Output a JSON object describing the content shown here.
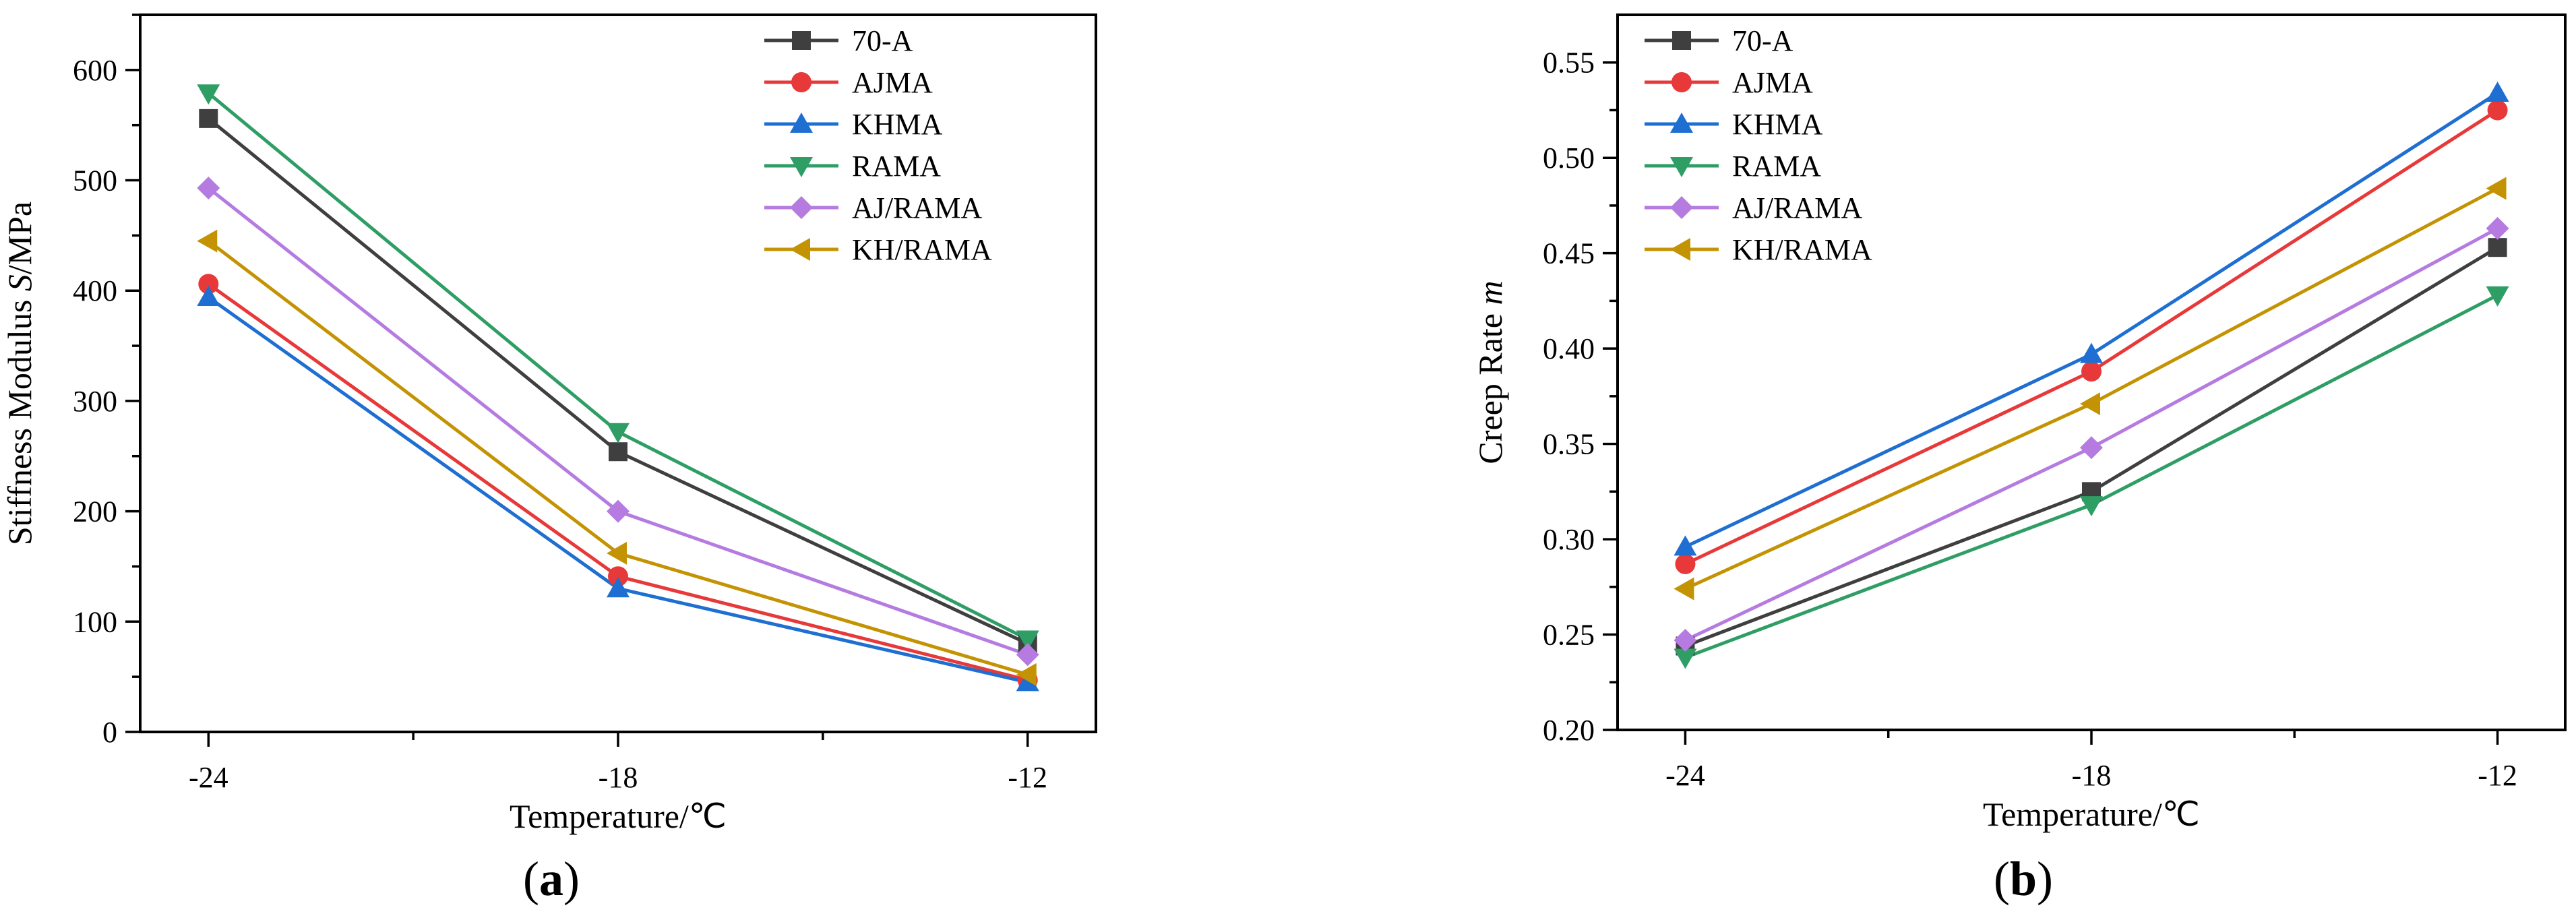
{
  "chart_data": [
    {
      "type": "line",
      "panel_label_open": "(",
      "panel_label_letter": "a",
      "panel_label_close": ")",
      "xlabel": "Temperature/℃",
      "ylabel_prefix": "Stiffness Modulus ",
      "ylabel_italic": "S",
      "ylabel_suffix": "/MPa",
      "x": [
        -24,
        -18,
        -12
      ],
      "x_tick_labels": [
        "-24",
        "-18",
        "-12"
      ],
      "xlim": [
        -25,
        -11
      ],
      "ylim": [
        0,
        650
      ],
      "y_ticks": [
        0,
        100,
        200,
        300,
        400,
        500,
        600
      ],
      "y_tick_labels": [
        "0",
        "100",
        "200",
        "300",
        "400",
        "500",
        "600"
      ],
      "legend_position": "top-right",
      "series": [
        {
          "name": "70-A",
          "color": "#3f3f3f",
          "marker": "square",
          "values": [
            556,
            254,
            80
          ]
        },
        {
          "name": "AJMA",
          "color": "#e8393a",
          "marker": "circle",
          "values": [
            406,
            141,
            47
          ]
        },
        {
          "name": "KHMA",
          "color": "#1e6fd1",
          "marker": "triangle-up",
          "values": [
            394,
            130,
            45
          ]
        },
        {
          "name": "RAMA",
          "color": "#2e9e65",
          "marker": "triangle-down",
          "values": [
            579,
            272,
            84
          ]
        },
        {
          "name": "AJ/RAMA",
          "color": "#b57be0",
          "marker": "diamond",
          "values": [
            493,
            200,
            70
          ]
        },
        {
          "name": "KH/RAMA",
          "color": "#c49303",
          "marker": "triangle-left",
          "values": [
            445,
            162,
            52
          ]
        }
      ]
    },
    {
      "type": "line",
      "panel_label_open": "(",
      "panel_label_letter": "b",
      "panel_label_close": ")",
      "xlabel": "Temperature/℃",
      "ylabel_prefix": "Creep Rate ",
      "ylabel_italic": "m",
      "ylabel_suffix": "",
      "x": [
        -24,
        -18,
        -12
      ],
      "x_tick_labels": [
        "-24",
        "-18",
        "-12"
      ],
      "xlim": [
        -25,
        -11
      ],
      "ylim": [
        0.2,
        0.575
      ],
      "y_ticks": [
        0.2,
        0.25,
        0.3,
        0.35,
        0.4,
        0.45,
        0.5,
        0.55
      ],
      "y_tick_labels": [
        "0.20",
        "0.25",
        "0.30",
        "0.35",
        "0.40",
        "0.45",
        "0.50",
        "0.55"
      ],
      "legend_position": "top-left",
      "series": [
        {
          "name": "70-A",
          "color": "#3f3f3f",
          "marker": "square",
          "values": [
            0.244,
            0.325,
            0.453
          ]
        },
        {
          "name": "AJMA",
          "color": "#e8393a",
          "marker": "circle",
          "values": [
            0.287,
            0.388,
            0.525
          ]
        },
        {
          "name": "KHMA",
          "color": "#1e6fd1",
          "marker": "triangle-up",
          "values": [
            0.296,
            0.397,
            0.534
          ]
        },
        {
          "name": "RAMA",
          "color": "#2e9e65",
          "marker": "triangle-down",
          "values": [
            0.238,
            0.318,
            0.428
          ]
        },
        {
          "name": "AJ/RAMA",
          "color": "#b57be0",
          "marker": "diamond",
          "values": [
            0.247,
            0.348,
            0.463
          ]
        },
        {
          "name": "KH/RAMA",
          "color": "#c49303",
          "marker": "triangle-left",
          "values": [
            0.274,
            0.371,
            0.484
          ]
        }
      ]
    }
  ]
}
